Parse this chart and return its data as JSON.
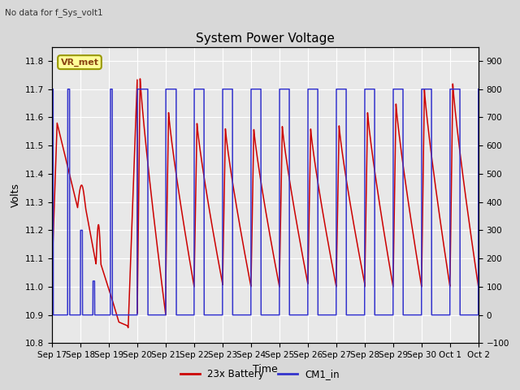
{
  "title": "System Power Voltage",
  "top_left_text": "No data for f_Sys_volt1",
  "xlabel": "Time",
  "ylabel": "Volts",
  "ylim_left": [
    10.8,
    11.85
  ],
  "ylim_right": [
    -100,
    950
  ],
  "yticks_left": [
    10.8,
    10.9,
    11.0,
    11.1,
    11.2,
    11.3,
    11.4,
    11.5,
    11.6,
    11.7,
    11.8
  ],
  "yticks_right": [
    -100,
    0,
    100,
    200,
    300,
    400,
    500,
    600,
    700,
    800,
    900
  ],
  "xtick_labels": [
    "Sep 17",
    "Sep 18",
    "Sep 19",
    "Sep 20",
    "Sep 21",
    "Sep 22",
    "Sep 23",
    "Sep 24",
    "Sep 25",
    "Sep 26",
    "Sep 27",
    "Sep 28",
    "Sep 29",
    "Sep 30",
    "Oct 1",
    "Oct 2"
  ],
  "background_color": "#d8d8d8",
  "plot_bg_color": "#e8e8e8",
  "grid_color": "#ffffff",
  "line1_color": "#cc0000",
  "line2_color": "#3333cc",
  "line1_label": "23x Battery",
  "line2_label": "CM1_in",
  "annotation_text": "VR_met",
  "annotation_bg": "#ffff99",
  "annotation_border": "#999900",
  "title_fontsize": 11,
  "tick_fontsize": 7.5,
  "label_fontsize": 9
}
